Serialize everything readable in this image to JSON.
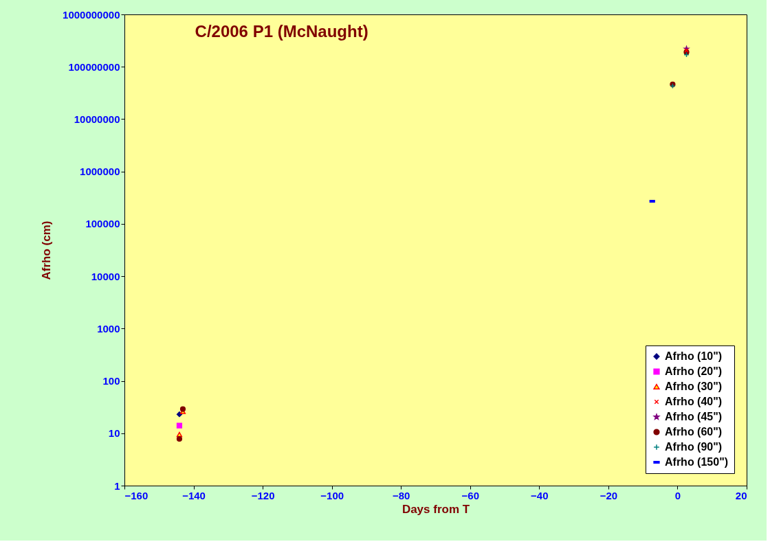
{
  "chart_data": {
    "type": "scatter",
    "title": "C/2006 P1 (McNaught)",
    "xlabel": "Days from T",
    "ylabel": "Afrho (cm)",
    "log": "y",
    "grid": false,
    "legend": "bottom right",
    "xlim": [
      -160,
      20
    ],
    "xticks": [
      -160,
      -140,
      -120,
      -100,
      -80,
      -60,
      -40,
      -20,
      0,
      20
    ],
    "ylim": [
      1,
      1000000000
    ],
    "yticks": [
      1,
      10,
      100,
      1000,
      10000,
      100000,
      1000000,
      10000000,
      100000000,
      1000000000
    ],
    "series": [
      {
        "name": "Afrho (10\")",
        "color": "#000080",
        "marker": "diamond",
        "x": [
          -144.1
        ],
        "values": [
          23
        ]
      },
      {
        "name": "Afrho (20\")",
        "color": "#ff00ff",
        "marker": "square",
        "x": [
          -144.1
        ],
        "values": [
          14
        ]
      },
      {
        "name": "Afrho (30\")",
        "color": "#ffff00",
        "marker": "triangle",
        "x": [
          -144.1,
          -143.1
        ],
        "values": [
          9.5,
          26
        ]
      },
      {
        "name": "Afrho (40\")",
        "color": "#ff0000",
        "marker": "cross",
        "x": [
          2.6
        ],
        "values": [
          205000000
        ]
      },
      {
        "name": "Afrho (45\")",
        "color": "#800080",
        "marker": "star",
        "x": [
          2.6
        ],
        "values": [
          220000000
        ]
      },
      {
        "name": "Afrho (60\")",
        "color": "#800000",
        "marker": "circle",
        "x": [
          -143.1,
          -144.1,
          -1.4,
          2.6
        ],
        "values": [
          29,
          7.8,
          46000000,
          190000000
        ]
      },
      {
        "name": "Afrho (90\")",
        "color": "#008080",
        "marker": "plus",
        "x": [
          -1.4,
          2.6
        ],
        "values": [
          43000000,
          170000000
        ]
      },
      {
        "name": "Afrho (150\")",
        "color": "#0000ff",
        "x": [
          -7.3
        ],
        "values": [
          270000
        ]
      }
    ]
  }
}
